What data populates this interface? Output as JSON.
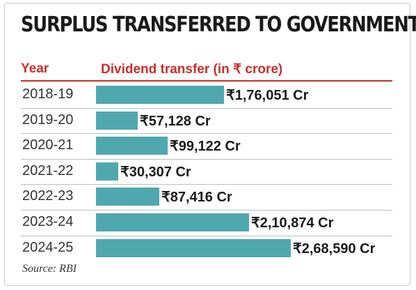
{
  "title": "SURPLUS TRANSFERRED TO GOVERNMENT",
  "header": {
    "year_label": "Year",
    "value_label": "Dividend transfer (in ₹ crore)"
  },
  "source": "Source: RBI",
  "colors": {
    "bar": "#4fa8ae",
    "header": "#c8302a",
    "text": "#1a1a1a"
  },
  "chart_data": {
    "type": "bar",
    "orientation": "horizontal",
    "title": "SURPLUS TRANSFERRED TO GOVERNMENT",
    "xlabel": "Dividend transfer (in ₹ crore)",
    "ylabel": "Year",
    "categories": [
      "2018-19",
      "2019-20",
      "2020-21",
      "2021-22",
      "2022-23",
      "2023-24",
      "2024-25"
    ],
    "values": [
      176051,
      57128,
      99122,
      30307,
      87416,
      210874,
      268590
    ],
    "value_labels": [
      "₹1,76,051 Cr",
      "₹57,128 Cr",
      "₹99,122 Cr",
      "₹30,307 Cr",
      "₹87,416 Cr",
      "₹2,10,874 Cr",
      "₹2,68,590 Cr"
    ],
    "grid": false,
    "legend": "none"
  }
}
